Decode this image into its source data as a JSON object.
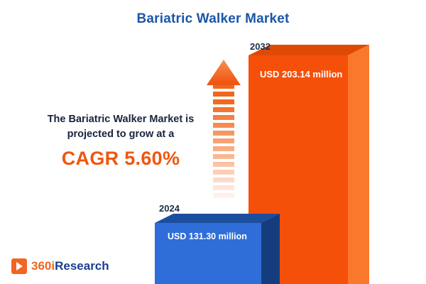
{
  "title": "Bariatric Walker Market",
  "description": {
    "line1": "The Bariatric Walker Market is",
    "line2": "projected to grow at a",
    "cagr": "CAGR 5.60%"
  },
  "chart_data": {
    "type": "bar",
    "title": "Bariatric Walker Market",
    "categories": [
      "2024",
      "2032"
    ],
    "values": [
      131.3,
      203.14
    ],
    "unit": "USD million",
    "bar_labels": [
      "USD 131.30 million",
      "USD 203.14 million"
    ],
    "cagr_percent": 5.6,
    "ylim": [
      0,
      220
    ],
    "legend": "none",
    "grid": false,
    "colors": {
      "bar_2024": "#2f6ed9",
      "bar_2032": "#f5500a",
      "accent": "#f0560f",
      "title": "#1a56a8"
    }
  },
  "logo": {
    "prefix": "360i",
    "suffix": "Research"
  }
}
